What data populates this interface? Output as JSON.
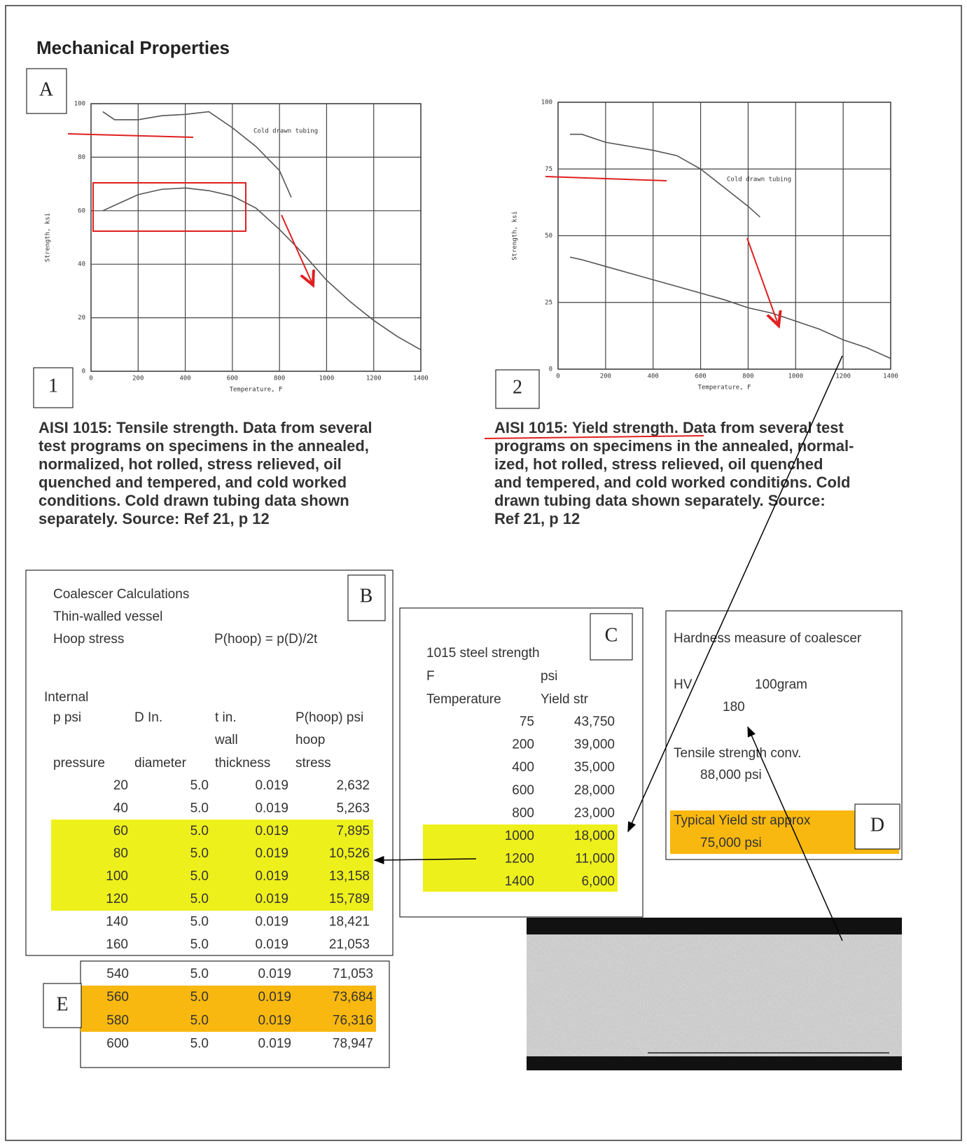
{
  "header": {
    "title": "Mechanical Properties"
  },
  "labels": {
    "a": "A",
    "one": "1",
    "two": "2",
    "b": "B",
    "c": "C",
    "d": "D",
    "e": "E"
  },
  "chart_data": [
    {
      "type": "line",
      "xlabel": "Temperature, F",
      "ylabel": "Strength, ksi",
      "xlim": [
        0,
        1400
      ],
      "ylim": [
        0,
        100
      ],
      "xticks": [
        0,
        200,
        400,
        600,
        800,
        1000,
        1200,
        1400
      ],
      "yticks": [
        0,
        20,
        40,
        60,
        80,
        100
      ],
      "grid": true,
      "annotation": "Cold drawn tubing",
      "series": [
        {
          "color": "#555555",
          "x": [
            50,
            100,
            200,
            300,
            400,
            500,
            600,
            700,
            800,
            850
          ],
          "values": [
            97,
            94,
            94,
            95.5,
            96,
            97,
            91,
            84,
            75,
            65
          ]
        },
        {
          "color": "#555555",
          "x": [
            50,
            100,
            200,
            300,
            400,
            500,
            600,
            700,
            800,
            900,
            1000,
            1100,
            1200,
            1300,
            1400
          ],
          "values": [
            60,
            62,
            66,
            68,
            68.5,
            67.5,
            65.5,
            61,
            53,
            44,
            34,
            26,
            19,
            13,
            8
          ]
        }
      ]
    },
    {
      "type": "line",
      "xlabel": "Temperature, F",
      "ylabel": "Strength, ksi",
      "xlim": [
        0,
        1400
      ],
      "ylim": [
        0,
        100
      ],
      "xticks": [
        0,
        200,
        400,
        600,
        800,
        1000,
        1200,
        1400
      ],
      "yticks": [
        0,
        25,
        50,
        75,
        100
      ],
      "grid": true,
      "annotation": "Cold drawn tubing",
      "series": [
        {
          "color": "#555555",
          "x": [
            50,
            100,
            200,
            300,
            400,
            500,
            600,
            700,
            800,
            850
          ],
          "values": [
            88,
            88,
            85,
            83.5,
            82,
            80,
            75,
            68,
            61,
            57
          ]
        },
        {
          "color": "#555555",
          "x": [
            50,
            100,
            200,
            300,
            400,
            500,
            600,
            700,
            800,
            900,
            1000,
            1100,
            1200,
            1300,
            1400
          ],
          "values": [
            42,
            41,
            38.5,
            36,
            33.5,
            31,
            28.5,
            26,
            23,
            21,
            18,
            15,
            11,
            8,
            4
          ]
        }
      ]
    }
  ],
  "captions": [
    [
      "AISI 1015: Tensile strength. Data from several",
      "test programs on specimens in the annealed,",
      "normalized, hot rolled, stress relieved, oil",
      "quenched and tempered, and cold worked",
      "conditions. Cold drawn tubing data shown",
      "separately.  Source: Ref 21, p 12"
    ],
    [
      "AISI 1015: Yield strength. Data from several test",
      "programs on specimens in the annealed, normal-",
      "ized, hot rolled, stress relieved, oil quenched",
      "and tempered, and cold worked conditions. Cold",
      "drawn tubing data shown separately.  Source:",
      "Ref 21, p 12"
    ]
  ],
  "table_b": {
    "title_lines": [
      "Coalescer Calculations",
      "Thin-walled vessel",
      "Hoop stress"
    ],
    "formula": "P(hoop) = p(D)/2t",
    "group_label": "Internal",
    "columns": [
      [
        "p  psi",
        "pressure"
      ],
      [
        "D  In.",
        "diameter"
      ],
      [
        "t in.",
        "wall",
        "thickness"
      ],
      [
        "P(hoop) psi",
        "hoop",
        "stress"
      ]
    ],
    "rows": [
      [
        "20",
        "5.0",
        "0.019",
        "2,632"
      ],
      [
        "40",
        "5.0",
        "0.019",
        "5,263"
      ],
      [
        "60",
        "5.0",
        "0.019",
        "7,895"
      ],
      [
        "80",
        "5.0",
        "0.019",
        "10,526"
      ],
      [
        "100",
        "5.0",
        "0.019",
        "13,158"
      ],
      [
        "120",
        "5.0",
        "0.019",
        "15,789"
      ],
      [
        "140",
        "5.0",
        "0.019",
        "18,421"
      ],
      [
        "160",
        "5.0",
        "0.019",
        "21,053"
      ]
    ],
    "highlight": {
      "rows": [
        2,
        3,
        4,
        5
      ],
      "color": "#eef01c"
    }
  },
  "table_c": {
    "title": "1015 steel strength",
    "columns": [
      [
        "F",
        "Temperature"
      ],
      [
        "psi",
        "Yield str"
      ]
    ],
    "rows": [
      [
        "75",
        "43,750"
      ],
      [
        "200",
        "39,000"
      ],
      [
        "400",
        "35,000"
      ],
      [
        "600",
        "28,000"
      ],
      [
        "800",
        "23,000"
      ],
      [
        "1000",
        "18,000"
      ],
      [
        "1200",
        "11,000"
      ],
      [
        "1400",
        "6,000"
      ]
    ],
    "highlight": {
      "rows": [
        5,
        6,
        7
      ],
      "color": "#eef01c"
    }
  },
  "box_d": {
    "title": "Hardness measure of coalescer",
    "hv": "HV",
    "load": "100gram",
    "hv_value": "180",
    "conv_label": "Tensile strength conv.",
    "conv_value": "88,000  psi",
    "yield_label": "Typical Yield str approx",
    "yield_value": "75,000  psi",
    "highlight_color": "#f9b80f"
  },
  "table_e": {
    "rows": [
      [
        "540",
        "5.0",
        "0.019",
        "71,053"
      ],
      [
        "560",
        "5.0",
        "0.019",
        "73,684"
      ],
      [
        "580",
        "5.0",
        "0.019",
        "76,316"
      ],
      [
        "600",
        "5.0",
        "0.019",
        "78,947"
      ]
    ],
    "highlight": {
      "rows": [
        1,
        2
      ],
      "color": "#f9b80f"
    }
  }
}
